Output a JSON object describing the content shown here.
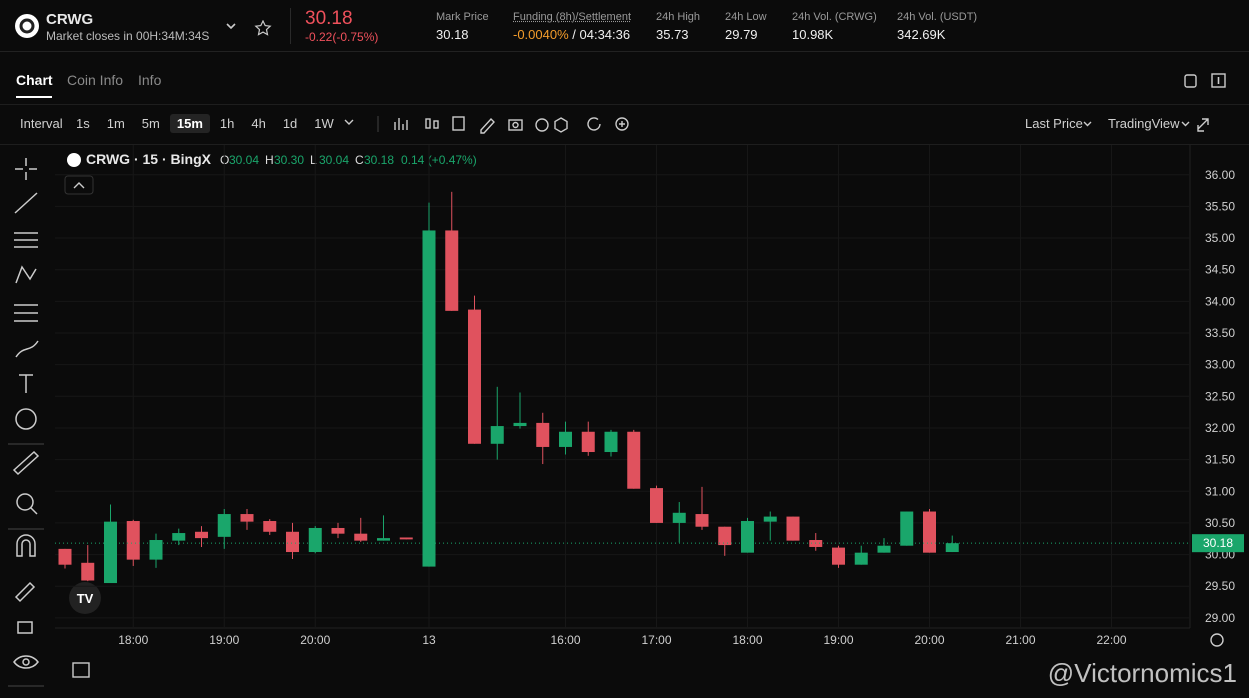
{
  "header": {
    "symbol": "CRWG",
    "market_status": "Market closes in",
    "countdown": "00H:34M:34S",
    "last_price": "30.18",
    "change": "-0.22(-0.75%)",
    "stats": [
      {
        "label": "Mark Price",
        "value": "30.18"
      },
      {
        "label": "Funding (8h)/Settlement",
        "value": "-0.0040%",
        "extra": "/ 04:34:36"
      },
      {
        "label": "24h High",
        "value": "35.73"
      },
      {
        "label": "24h Low",
        "value": "29.79"
      },
      {
        "label": "24h Vol. (CRWG)",
        "value": "10.98K"
      },
      {
        "label": "24h Vol. (USDT)",
        "value": "342.69K"
      }
    ]
  },
  "tabs": [
    "Chart",
    "Coin Info",
    "Info"
  ],
  "toolbar": {
    "interval_label": "Interval",
    "intervals": [
      "1s",
      "1m",
      "5m",
      "15m",
      "1h",
      "4h",
      "1d",
      "1W"
    ],
    "price_type": "Last Price",
    "chart_engine": "TradingView"
  },
  "watermark": "@Victornomics1",
  "chart_data": {
    "type": "candlestick",
    "legend": {
      "title": "CRWG · 15 · BingX",
      "items": [
        {
          "key": "O",
          "value": "30.04"
        },
        {
          "key": "H",
          "value": "30.30"
        },
        {
          "key": "L",
          "value": "30.04"
        },
        {
          "key": "C",
          "value": "30.18"
        }
      ],
      "change": "0.14 (+0.47%)"
    },
    "categories": [
      null,
      null,
      null,
      "18:00",
      null,
      null,
      null,
      "19:00",
      null,
      null,
      null,
      "20:00",
      null,
      null,
      null,
      null,
      "13",
      null,
      null,
      null,
      null,
      null,
      "16:00",
      null,
      null,
      null,
      "17:00",
      null,
      null,
      null,
      "18:00",
      null,
      null,
      null,
      "19:00",
      null,
      null,
      null,
      "20:00",
      null,
      null,
      null,
      "21:00",
      null,
      null,
      null,
      "22:00"
    ],
    "open": [
      30.09,
      29.87,
      29.55,
      30.53,
      29.92,
      30.22,
      30.36,
      30.28,
      30.64,
      30.53,
      30.36,
      30.04,
      30.42,
      30.33,
      30.22,
      30.27,
      29.81,
      35.12,
      33.87,
      31.75,
      32.03,
      32.08,
      31.7,
      31.94,
      31.62,
      31.94,
      31.05,
      30.5,
      30.64,
      30.44,
      30.03,
      30.52,
      30.6,
      30.23,
      30.11,
      29.84,
      30.03,
      30.14,
      30.68,
      30.04,
      null,
      null,
      null,
      null,
      null,
      null,
      null
    ],
    "high": [
      30.09,
      30.15,
      30.79,
      30.55,
      30.33,
      30.41,
      30.45,
      30.72,
      30.72,
      30.56,
      30.5,
      30.45,
      30.5,
      30.58,
      30.62,
      30.27,
      35.56,
      35.73,
      34.09,
      32.65,
      32.56,
      32.24,
      32.1,
      32.1,
      31.97,
      31.97,
      31.09,
      30.83,
      31.07,
      30.44,
      30.58,
      30.68,
      30.6,
      30.34,
      30.14,
      30.14,
      30.26,
      30.68,
      30.72,
      30.3,
      null,
      null,
      null,
      null,
      null,
      null,
      null
    ],
    "low": [
      29.78,
      29.58,
      29.55,
      29.82,
      29.79,
      30.15,
      30.12,
      30.09,
      30.39,
      30.31,
      29.93,
      30.02,
      30.26,
      30.2,
      30.22,
      30.24,
      29.81,
      33.85,
      31.75,
      31.5,
      31.99,
      31.43,
      31.58,
      31.56,
      31.55,
      31.04,
      30.5,
      30.19,
      30.39,
      29.98,
      30.03,
      30.22,
      30.22,
      30.06,
      29.79,
      29.84,
      30.03,
      30.14,
      30.03,
      30.04,
      null,
      null,
      null,
      null,
      null,
      null,
      null
    ],
    "close": [
      29.84,
      29.59,
      30.52,
      29.92,
      30.23,
      30.34,
      30.26,
      30.64,
      30.52,
      30.36,
      30.04,
      30.42,
      30.33,
      30.22,
      30.26,
      30.24,
      35.12,
      33.85,
      31.75,
      32.03,
      32.08,
      31.7,
      31.94,
      31.62,
      31.94,
      31.04,
      30.5,
      30.66,
      30.44,
      30.15,
      30.53,
      30.6,
      30.22,
      30.12,
      29.84,
      30.03,
      30.14,
      30.68,
      30.03,
      30.18,
      null,
      null,
      null,
      null,
      null,
      null,
      null
    ],
    "up_color": "#1aa66b",
    "down_color": "#e0525e",
    "ylim": [
      28.84,
      36.47
    ],
    "yticks": [
      {
        "value": 29,
        "label": "29.00"
      },
      {
        "value": 29.5,
        "label": "29.50"
      },
      {
        "value": 30,
        "label": "30.00"
      },
      {
        "value": 30.5,
        "label": "30.50"
      },
      {
        "value": 31,
        "label": "31.00"
      },
      {
        "value": 31.5,
        "label": "31.50"
      },
      {
        "value": 32,
        "label": "32.00"
      },
      {
        "value": 32.5,
        "label": "32.50"
      },
      {
        "value": 33,
        "label": "33.00"
      },
      {
        "value": 33.5,
        "label": "33.50"
      },
      {
        "value": 34,
        "label": "34.00"
      },
      {
        "value": 34.5,
        "label": "34.50"
      },
      {
        "value": 35,
        "label": "35.00"
      },
      {
        "value": 35.5,
        "label": "35.50"
      },
      {
        "value": 36,
        "label": "36.00"
      }
    ],
    "grid": true,
    "price_line": {
      "value": 30.18,
      "label": "30.18"
    }
  }
}
